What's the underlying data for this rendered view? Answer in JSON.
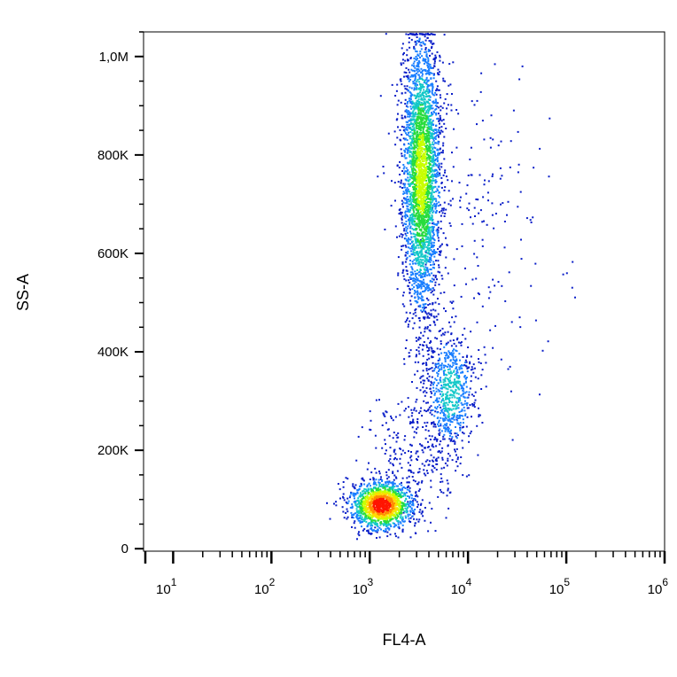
{
  "chart_data": {
    "type": "scatter",
    "subtype": "flow-cytometry-density-dot-plot",
    "title": "",
    "xlabel": "FL4-A",
    "ylabel": "SS-A",
    "x_scale": "log",
    "xlim": [
      5,
      1000000
    ],
    "ylim": [
      -5000,
      1050000
    ],
    "x_ticks": [
      {
        "base": "10",
        "exp": "1",
        "value": 10
      },
      {
        "base": "10",
        "exp": "2",
        "value": 100
      },
      {
        "base": "10",
        "exp": "3",
        "value": 1000
      },
      {
        "base": "10",
        "exp": "4",
        "value": 10000
      },
      {
        "base": "10",
        "exp": "5",
        "value": 100000
      },
      {
        "base": "10",
        "exp": "6",
        "value": 1000000
      }
    ],
    "y_ticks": [
      {
        "label": "0",
        "value": 0
      },
      {
        "label": "200K",
        "value": 200000
      },
      {
        "label": "400K",
        "value": 400000
      },
      {
        "label": "600K",
        "value": 600000
      },
      {
        "label": "800K",
        "value": 800000
      },
      {
        "label": "1,0M",
        "value": 1000000
      }
    ],
    "y_minor_step": 50000,
    "grid": false,
    "color_scale": [
      "#0a1ec8",
      "#1a7fff",
      "#14c8c8",
      "#28dc3c",
      "#c8ff00",
      "#ffdc00",
      "#ff8c00",
      "#ff1400"
    ],
    "populations": [
      {
        "x_center": 1300,
        "x_spread_log10": 0.16,
        "y_center": 90000,
        "y_spread": 25000,
        "count": 1500,
        "peak_density": 1.0
      },
      {
        "x_center": 3300,
        "x_spread_log10": 0.1,
        "y_center": 760000,
        "y_spread": 150000,
        "count": 3200,
        "peak_density": 0.55
      },
      {
        "x_center": 6500,
        "x_spread_log10": 0.13,
        "y_center": 320000,
        "y_spread": 65000,
        "count": 700,
        "peak_density": 0.3
      },
      {
        "x_center": 15000,
        "x_spread_log10": 0.35,
        "y_center": 650000,
        "y_spread": 150000,
        "count": 160,
        "peak_density": 0.02
      },
      {
        "x_center": 2800,
        "x_spread_log10": 0.22,
        "y_center": 200000,
        "y_spread": 60000,
        "count": 260,
        "peak_density": 0.05
      }
    ]
  }
}
